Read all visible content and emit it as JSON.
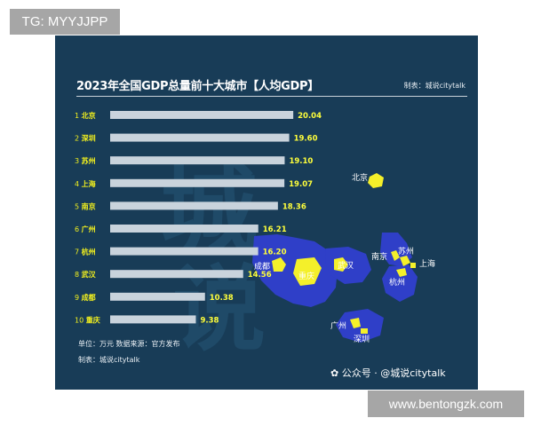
{
  "top_tag": "TG: MYYJJPP",
  "bottom_tag": "www.bentongzk.com",
  "panel": {
    "source_top": "制表：城说citytalk",
    "unit_note": "单位：万元    数据来源：官方发布",
    "maker_note": "制表：城说citytalk",
    "watermark": "公众号 · @城说citytalk",
    "background_glyphs": [
      "城",
      "说"
    ]
  },
  "colors": {
    "panel_bg": "#183c57",
    "bar": "#c9d3dc",
    "rank_label": "#f2f01e",
    "value_label": "#ffff3b",
    "region": "#2f3fc8",
    "city": "#f4f02a"
  },
  "chart_data": {
    "type": "bar",
    "orientation": "horizontal",
    "title": "2023年全国GDP总量前十大城市【人均GDP】",
    "categories": [
      "1 北京",
      "2 深圳",
      "3 苏州",
      "4 上海",
      "5 南京",
      "6 广州",
      "7 杭州",
      "8 武汉",
      "9 成都",
      "10 重庆"
    ],
    "values": [
      20.04,
      19.6,
      19.1,
      19.07,
      18.36,
      16.21,
      16.2,
      14.56,
      10.38,
      9.38
    ],
    "value_labels": [
      "20.04",
      "19.60",
      "19.10",
      "19.07",
      "18.36",
      "16.21",
      "16.20",
      "14.56",
      "10.38",
      "9.38"
    ],
    "xlim": [
      0,
      21
    ],
    "grid": false
  },
  "map": {
    "labels": [
      "北京",
      "成都",
      "重庆",
      "武汉",
      "南京",
      "苏州",
      "上海",
      "杭州",
      "广州",
      "深圳"
    ]
  }
}
